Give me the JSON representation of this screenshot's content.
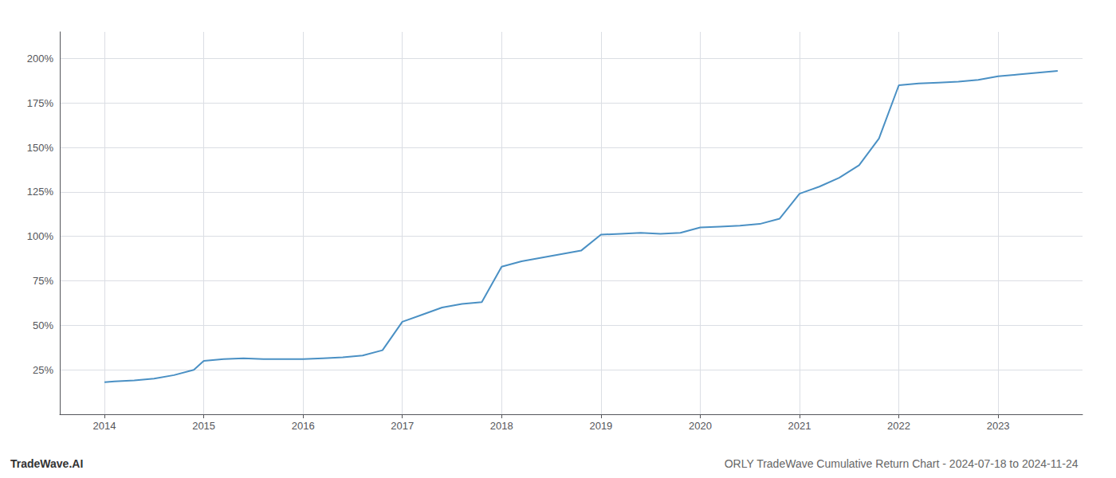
{
  "chart_data": {
    "type": "line",
    "title": "ORLY TradeWave Cumulative Return Chart - 2024-07-18 to 2024-11-24",
    "annotations": [
      "TradeWave.AI"
    ],
    "color": "#4a90c4",
    "x": [
      2014.0,
      2014.1,
      2014.3,
      2014.5,
      2014.7,
      2014.9,
      2015.0,
      2015.2,
      2015.4,
      2015.6,
      2015.8,
      2016.0,
      2016.2,
      2016.4,
      2016.6,
      2016.8,
      2017.0,
      2017.2,
      2017.4,
      2017.6,
      2017.8,
      2018.0,
      2018.2,
      2018.4,
      2018.6,
      2018.8,
      2019.0,
      2019.2,
      2019.4,
      2019.6,
      2019.8,
      2020.0,
      2020.2,
      2020.4,
      2020.6,
      2020.8,
      2021.0,
      2021.2,
      2021.4,
      2021.6,
      2021.8,
      2022.0,
      2022.2,
      2022.4,
      2022.6,
      2022.8,
      2023.0,
      2023.2,
      2023.4,
      2023.6
    ],
    "values": [
      18,
      18.5,
      19,
      20,
      22,
      25,
      30,
      31,
      31.5,
      31,
      31,
      31,
      31.5,
      32,
      33,
      36,
      52,
      56,
      60,
      62,
      63,
      83,
      86,
      88,
      90,
      92,
      101,
      101.5,
      102,
      101.5,
      102,
      105,
      105.5,
      106,
      107,
      110,
      124,
      128,
      133,
      140,
      155,
      185,
      186,
      186.5,
      187,
      188,
      190,
      191,
      192,
      193
    ],
    "xlim": [
      2013.55,
      2023.85
    ],
    "xticks": [
      2014,
      2015,
      2016,
      2017,
      2018,
      2019,
      2020,
      2021,
      2022,
      2023
    ],
    "ylim": [
      0,
      215
    ],
    "yticks": [
      {
        "value": 25,
        "label": "25%"
      },
      {
        "value": 50,
        "label": "50%"
      },
      {
        "value": 75,
        "label": "75%"
      },
      {
        "value": 100,
        "label": "100%"
      },
      {
        "value": 125,
        "label": "125%"
      },
      {
        "value": 150,
        "label": "150%"
      },
      {
        "value": 175,
        "label": "175%"
      },
      {
        "value": 200,
        "label": "200%"
      }
    ],
    "grid": true
  }
}
